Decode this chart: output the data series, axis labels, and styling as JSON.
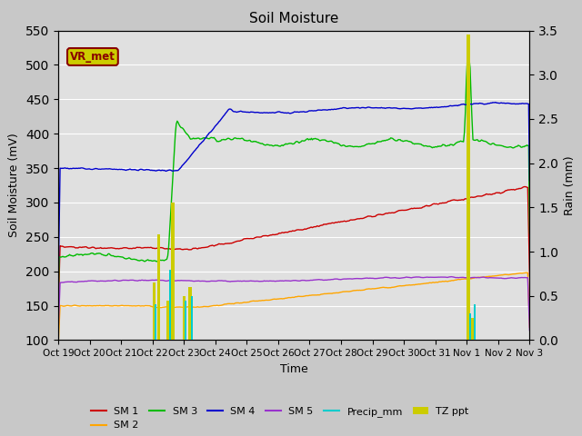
{
  "title": "Soil Moisture",
  "ylabel_left": "Soil Moisture (mV)",
  "ylabel_right": "Rain (mm)",
  "xlabel": "Time",
  "ylim_left": [
    100,
    550
  ],
  "ylim_right": [
    0.0,
    3.5
  ],
  "yticks_left": [
    100,
    150,
    200,
    250,
    300,
    350,
    400,
    450,
    500,
    550
  ],
  "yticks_right": [
    0.0,
    0.5,
    1.0,
    1.5,
    2.0,
    2.5,
    3.0,
    3.5
  ],
  "fig_bg_color": "#c8c8c8",
  "axes_bg_color": "#e0e0e0",
  "sm1_color": "#cc0000",
  "sm2_color": "#ffa500",
  "sm3_color": "#00bb00",
  "sm4_color": "#0000cc",
  "sm5_color": "#9933cc",
  "precip_color": "#00cccc",
  "tzppt_color": "#cccc00",
  "annot_text_color": "#880000",
  "annot_box_bg": "#cccc00",
  "annot_box_edge": "#880000",
  "annotation_text": "VR_met",
  "tick_labels": [
    "Oct 19",
    "Oct 20",
    "Oct 21",
    "Oct 22",
    "Oct 23",
    "Oct 24",
    "Oct 25",
    "Oct 26",
    "Oct 27",
    "Oct 28",
    "Oct 29",
    "Oct 30",
    "Oct 31",
    "Nov 1",
    "Nov 2",
    "Nov 3"
  ]
}
